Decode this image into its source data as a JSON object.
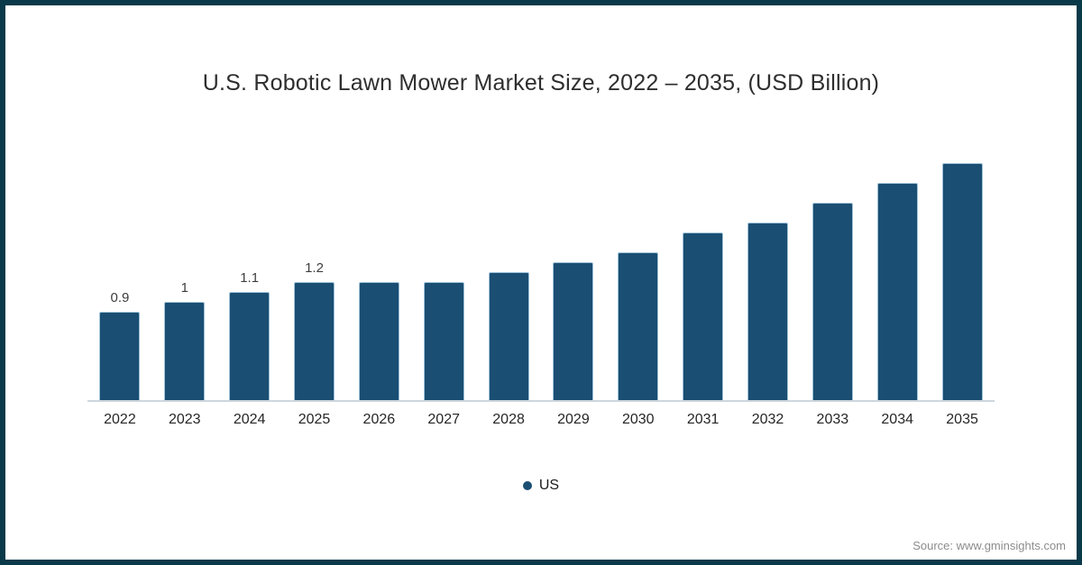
{
  "chart_data": {
    "type": "bar",
    "title": "U.S. Robotic Lawn Mower Market Size, 2022 – 2035, (USD Billion)",
    "categories": [
      "2022",
      "2023",
      "2024",
      "2025",
      "2026",
      "2027",
      "2028",
      "2029",
      "2030",
      "2031",
      "2032",
      "2033",
      "2034",
      "2035"
    ],
    "values": [
      0.9,
      1,
      1.1,
      1.2,
      1.2,
      1.2,
      1.3,
      1.4,
      1.5,
      1.7,
      1.8,
      2.0,
      2.2,
      2.4
    ],
    "data_labels": [
      "0.9",
      "1",
      "1.1",
      "1.2",
      "",
      "",
      "",
      "",
      "",
      "",
      "",
      "",
      "",
      ""
    ],
    "xlabel": "",
    "ylabel": "",
    "ylim": [
      0,
      2.6
    ],
    "grid": false,
    "legend_position": "bottom",
    "legend": [
      {
        "label": "US",
        "color": "#1a4e72"
      }
    ],
    "bar_color": "#1a4e72",
    "bar_stroke": "#9ec1d8"
  },
  "colors": {
    "frame_border": "#0a3a49",
    "axis_line": "#cdd6de",
    "title_text": "#2e2e2e",
    "source_text": "#8c8c8c"
  },
  "source_text": "Source: www.gminsights.com"
}
